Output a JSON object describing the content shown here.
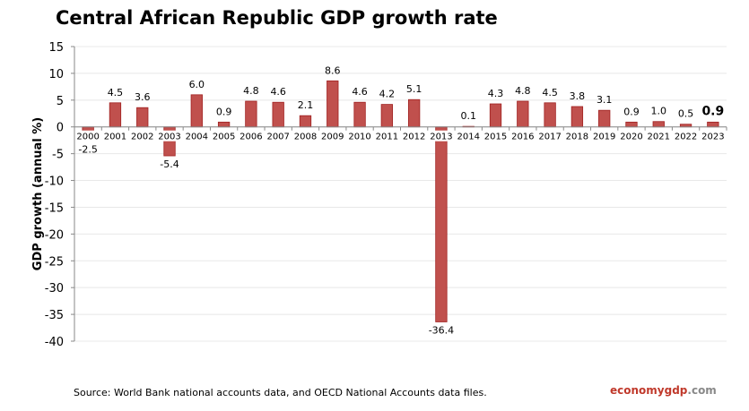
{
  "chart_data": {
    "type": "bar",
    "title": "Central African Republic GDP growth rate",
    "ylabel": "GDP growth (annual %)",
    "xlabel": "",
    "ylim": [
      -40,
      15
    ],
    "yticks": [
      15,
      10,
      5,
      0,
      -5,
      -10,
      -15,
      -20,
      -25,
      -30,
      -35,
      -40
    ],
    "grid": true,
    "bar_color": "#c0504d",
    "categories": [
      "2000",
      "2001",
      "2002",
      "2003",
      "2004",
      "2005",
      "2006",
      "2007",
      "2008",
      "2009",
      "2010",
      "2011",
      "2012",
      "2013",
      "2014",
      "2015",
      "2016",
      "2017",
      "2018",
      "2019",
      "2020",
      "2021",
      "2022",
      "2023"
    ],
    "values": [
      -2.5,
      4.5,
      3.6,
      -5.4,
      6.0,
      0.9,
      4.8,
      4.6,
      2.1,
      8.6,
      4.6,
      4.2,
      5.1,
      -36.4,
      0.1,
      4.3,
      4.8,
      4.5,
      3.8,
      3.1,
      0.9,
      1.0,
      0.5,
      0.9
    ],
    "data_labels": [
      "-2.5",
      "4.5",
      "3.6",
      "-5.4",
      "6.0",
      "0.9",
      "4.8",
      "4.6",
      "2.1",
      "8.6",
      "4.6",
      "4.2",
      "5.1",
      "-36.4",
      "0.1",
      "4.3",
      "4.8",
      "4.5",
      "3.8",
      "3.1",
      "0.9",
      "1.0",
      "0.5",
      "0.9"
    ]
  },
  "footer": {
    "source": "Source:  World Bank national accounts data, and OECD National Accounts data files.",
    "brand_a": "economy",
    "brand_b": "gdp",
    "brand_c": ".com"
  }
}
